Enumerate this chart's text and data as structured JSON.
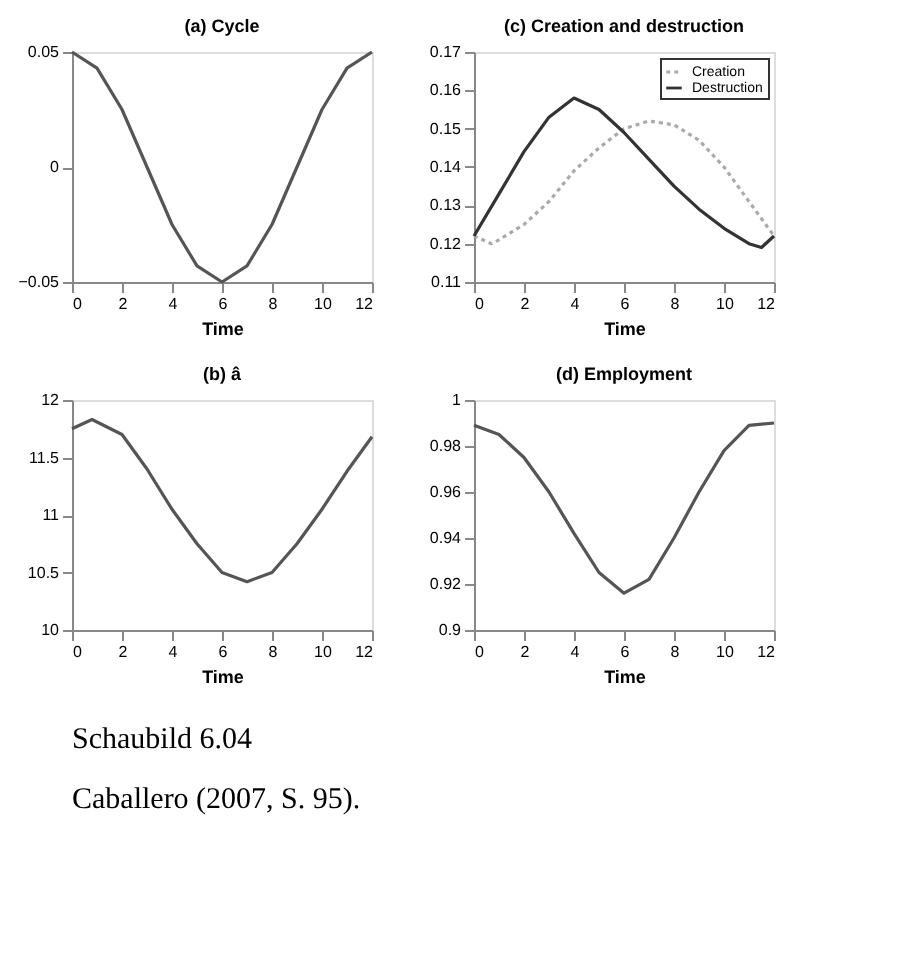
{
  "chart_data": [
    {
      "type": "line",
      "title": "(a) Cycle",
      "xlabel": "Time",
      "x": [
        0,
        1,
        2,
        3,
        4,
        5,
        6,
        7,
        8,
        9,
        10,
        11,
        12
      ],
      "xlim": [
        0,
        12
      ],
      "xticks": [
        0,
        2,
        4,
        6,
        8,
        10,
        12
      ],
      "ylim": [
        -0.05,
        0.05
      ],
      "yticks": [
        -0.05,
        0,
        0.05
      ],
      "grid": false,
      "legend": false,
      "series": [
        {
          "color": "#555555",
          "line_style": "solid",
          "values": [
            0.05,
            0.043,
            0.025,
            0,
            -0.025,
            -0.043,
            -0.05,
            -0.043,
            -0.025,
            0,
            0.025,
            0.043,
            0.05
          ]
        }
      ]
    },
    {
      "type": "line",
      "title": "(c) Creation and destruction",
      "xlabel": "Time",
      "xlim": [
        0,
        12
      ],
      "xticks": [
        0,
        2,
        4,
        6,
        8,
        10,
        12
      ],
      "ylim": [
        0.11,
        0.17
      ],
      "yticks": [
        0.11,
        0.12,
        0.13,
        0.14,
        0.15,
        0.16,
        0.17
      ],
      "grid": false,
      "legend": "top right",
      "series": [
        {
          "name": "Creation",
          "color": "#aaaaaa",
          "line_style": "dotted",
          "x": [
            0,
            0.7,
            1,
            2,
            3,
            4,
            5,
            6,
            7,
            8,
            9,
            10,
            11,
            12
          ],
          "values": [
            0.122,
            0.12,
            0.121,
            0.125,
            0.131,
            0.139,
            0.145,
            0.15,
            0.152,
            0.151,
            0.147,
            0.14,
            0.131,
            0.122
          ]
        },
        {
          "name": "Destruction",
          "color": "#333333",
          "line_style": "solid",
          "x": [
            0,
            1,
            2,
            3,
            4,
            5,
            6,
            7,
            8,
            9,
            10,
            11,
            11.5,
            12
          ],
          "values": [
            0.122,
            0.133,
            0.144,
            0.153,
            0.158,
            0.155,
            0.149,
            0.142,
            0.135,
            0.129,
            0.124,
            0.12,
            0.119,
            0.122
          ]
        }
      ]
    },
    {
      "type": "line",
      "title": "(b) â",
      "xlabel": "Time",
      "x": [
        0,
        0.8,
        2,
        3,
        4,
        5,
        6,
        7,
        8,
        9,
        10,
        11,
        12
      ],
      "xlim": [
        0,
        12
      ],
      "xticks": [
        0,
        2,
        4,
        6,
        8,
        10,
        12
      ],
      "ylim": [
        10,
        12
      ],
      "yticks": [
        10,
        10.5,
        11,
        11.5,
        12
      ],
      "grid": false,
      "legend": false,
      "series": [
        {
          "color": "#555555",
          "line_style": "solid",
          "values": [
            11.75,
            11.83,
            11.7,
            11.4,
            11.05,
            10.75,
            10.5,
            10.42,
            10.5,
            10.75,
            11.05,
            11.38,
            11.68
          ]
        }
      ]
    },
    {
      "type": "line",
      "title": "(d) Employment",
      "xlabel": "Time",
      "x": [
        0,
        1,
        2,
        3,
        4,
        5,
        6,
        7,
        8,
        9,
        10,
        11,
        12
      ],
      "xlim": [
        0,
        12
      ],
      "xticks": [
        0,
        2,
        4,
        6,
        8,
        10,
        12
      ],
      "ylim": [
        0.9,
        1
      ],
      "yticks": [
        0.9,
        0.92,
        0.94,
        0.96,
        0.98,
        1
      ],
      "grid": false,
      "legend": false,
      "series": [
        {
          "color": "#555555",
          "line_style": "solid",
          "values": [
            0.989,
            0.985,
            0.975,
            0.96,
            0.942,
            0.925,
            0.916,
            0.922,
            0.94,
            0.96,
            0.978,
            0.989,
            0.99
          ]
        }
      ],
      "annotations": [
        "Schaubild 6.04",
        "Caballero (2007, S. 95)."
      ]
    }
  ]
}
